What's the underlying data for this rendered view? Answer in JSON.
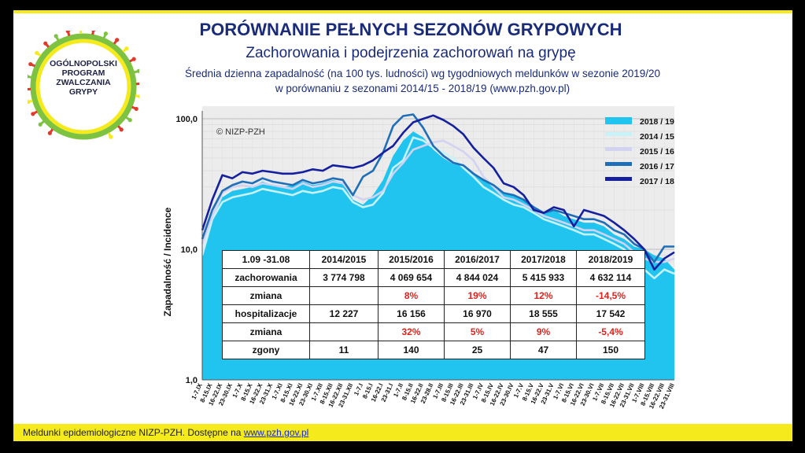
{
  "header": {
    "title": "PORÓWNANIE PEŁNYCH SEZONÓW GRYPOWYCH",
    "subtitle": "Zachorowania i podejrzenia zachorowań na grypę",
    "description_line1": "Średnia dzienna zapadalność (na 100 tys. ludności) wg tygodniowych meldunków w sezonie 2019/20",
    "description_line2": "w porównaniu z sezonami 2014/15 - 2018/19 (www.pzh.gov.pl)"
  },
  "logo": {
    "line1": "OGÓLNOPOLSKI",
    "line2": "PROGRAM",
    "line3": "ZWALCZANIA",
    "line4": "GRYPY"
  },
  "footer": {
    "text": "Meldunki epidemiologiczne NIZP-PZH. Dostępne na ",
    "link": "www.pzh.gov.pl"
  },
  "colors": {
    "yellow_band": "#f4ea1c",
    "title_blue": "#1a2b78",
    "area_2018_19": "#21c4ef",
    "line_2014_15": "#c9f2f8",
    "line_2015_16": "#d2d3f1",
    "line_2016_17": "#1f6eb8",
    "line_2017_18": "#14209e",
    "red_change": "#e0221c"
  },
  "table": {
    "headers": [
      "1.09 -31.08",
      "2014/2015",
      "2015/2016",
      "2016/2017",
      "2017/2018",
      "2018/2019"
    ],
    "rows": [
      {
        "label": "zachorowania",
        "values": [
          "3 774 798",
          "4 069 654",
          "4 844 024",
          "5 415 933",
          "4 632 114"
        ],
        "red": false
      },
      {
        "label": "zmiana",
        "values": [
          "",
          "8%",
          "19%",
          "12%",
          "-14,5%"
        ],
        "red": true
      },
      {
        "label": "hospitalizacje",
        "values": [
          "12 227",
          "16 156",
          "16 970",
          "18 555",
          "17 542"
        ],
        "red": false
      },
      {
        "label": "zmiana",
        "values": [
          "",
          "32%",
          "5%",
          "9%",
          "-5,4%"
        ],
        "red": true
      },
      {
        "label": "zgony",
        "values": [
          "11",
          "140",
          "25",
          "47",
          "150"
        ],
        "red": false
      }
    ]
  },
  "chart_data": {
    "type": "area",
    "title": "",
    "ylabel": "Zapadalność / Incidence",
    "xlabel": "",
    "yscale": "log",
    "ylim": [
      1,
      100
    ],
    "yticks": [
      "1,0",
      "10,0",
      "100,0"
    ],
    "watermark": "© NIZP-PZH",
    "grid": true,
    "legend_position": "top-right",
    "categories": [
      "1-7.IX",
      "8-15.IX",
      "16-22.IX",
      "23-30.IX",
      "1-7.X",
      "8-15.X",
      "16-22.X",
      "23-31.X",
      "1-7.XI",
      "8-15.XI",
      "16-22.XI",
      "23-30.XI",
      "1-7.XII",
      "8-15.XII",
      "16-22.XII",
      "23-31.XII",
      "1-7.I",
      "8-15.I",
      "16-22.I",
      "23-31.I",
      "1-7.II",
      "8-15.II",
      "16-22.II",
      "23-28.II",
      "1-7.III",
      "8-15.III",
      "16-22.III",
      "23-31.III",
      "1-7.IV",
      "8-15.IV",
      "16-22.IV",
      "23-30.IV",
      "1-7.V",
      "8-15.V",
      "16-22.V",
      "23-31.V",
      "1-7.VI",
      "8-15.VI",
      "16-22.VI",
      "23-30.VI",
      "1-7.VII",
      "8-15.VII",
      "16-22.VII",
      "23-31.VII",
      "1-7.VIII",
      "8-15.VIII",
      "16-22.VIII",
      "23-31.VIII"
    ],
    "series": [
      {
        "name": "2018 / 19",
        "kind": "area",
        "values": [
          9,
          17,
          25,
          28,
          29,
          30,
          33,
          31,
          30,
          31,
          33,
          31,
          32,
          34,
          32,
          24,
          22,
          26,
          34,
          52,
          68,
          80,
          72,
          58,
          50,
          45,
          44,
          38,
          34,
          30,
          27,
          26,
          24,
          21,
          19,
          20,
          18,
          17,
          16,
          16,
          15,
          13,
          12,
          10.5,
          10,
          9,
          8.5,
          7
        ]
      },
      {
        "name": "2014 / 15",
        "kind": "line",
        "values": [
          9,
          17,
          23,
          25,
          26,
          27,
          29,
          28,
          27,
          26,
          28,
          27,
          28,
          30,
          29,
          23,
          21,
          22,
          27,
          42,
          48,
          72,
          68,
          60,
          55,
          50,
          42,
          36,
          30,
          27,
          24,
          22,
          21,
          19,
          17,
          16,
          15,
          14,
          13,
          13,
          12,
          11,
          10,
          8,
          7,
          6,
          7,
          6.5
        ]
      },
      {
        "name": "2015 / 16",
        "kind": "line",
        "values": [
          11,
          18,
          27,
          30,
          31,
          30,
          32,
          31,
          30,
          29,
          32,
          30,
          31,
          33,
          32,
          26,
          24,
          25,
          28,
          38,
          46,
          58,
          62,
          66,
          68,
          62,
          56,
          48,
          36,
          30,
          25,
          24,
          22,
          20,
          18,
          17,
          16,
          15,
          14,
          14,
          13,
          12,
          11,
          9.5,
          8.5,
          8,
          8,
          8.5
        ]
      },
      {
        "name": "2016 / 17",
        "kind": "line",
        "values": [
          12,
          20,
          28,
          31,
          33,
          32,
          35,
          33,
          32,
          31,
          34,
          32,
          33,
          35,
          34,
          26,
          36,
          40,
          55,
          88,
          105,
          108,
          85,
          62,
          52,
          46,
          44,
          38,
          34,
          31,
          27,
          26,
          24,
          21,
          19,
          20,
          19,
          18,
          17,
          17,
          16,
          14,
          13,
          11,
          10,
          8,
          10.5,
          10.5
        ]
      },
      {
        "name": "2017 / 18",
        "kind": "line",
        "values": [
          14,
          24,
          37,
          35,
          39,
          38,
          40,
          39,
          38,
          38,
          39,
          41,
          40,
          44,
          43,
          42,
          44,
          48,
          55,
          62,
          78,
          94,
          100,
          106,
          98,
          88,
          76,
          60,
          50,
          42,
          32,
          30,
          26,
          20,
          19,
          21,
          20,
          15,
          20,
          19,
          18,
          16,
          14,
          12,
          10,
          7,
          8.5,
          9.5
        ]
      }
    ]
  }
}
